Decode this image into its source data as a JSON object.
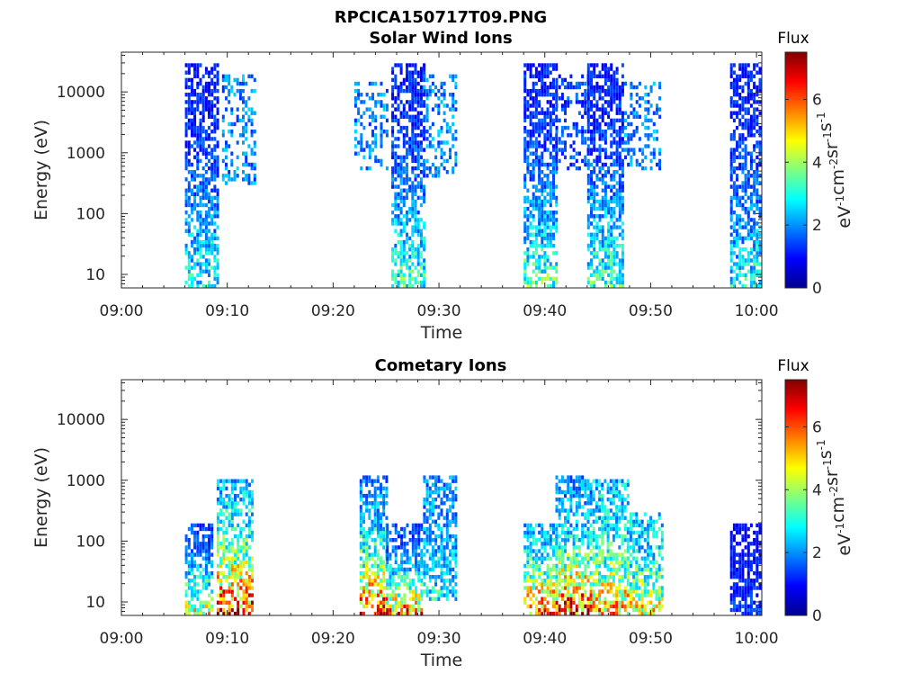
{
  "figure": {
    "title": "RPCICA150717T09.PNG"
  },
  "colorbar": {
    "title": "Flux",
    "label": "eV-1cm-2sr-1s-1",
    "ticks": [
      "0",
      "2",
      "4",
      "6"
    ],
    "range": [
      0,
      7.5
    ],
    "colormap": [
      "#00008f",
      "#0000ff",
      "#0080ff",
      "#00ffff",
      "#80ff80",
      "#ffff00",
      "#ff8000",
      "#ff0000",
      "#800000"
    ]
  },
  "chart_data": [
    {
      "type": "heatmap",
      "title": "Solar Wind Ions",
      "xlabel": "Time",
      "ylabel": "Energy (eV)",
      "x_ticks": [
        "09:00",
        "09:10",
        "09:20",
        "09:30",
        "09:40",
        "09:50",
        "10:00"
      ],
      "y_ticks": [
        "10",
        "100",
        "1000",
        "10000"
      ],
      "y_scale": "log",
      "xlim_minutes": [
        0,
        60.5
      ],
      "ylim": [
        6,
        45000
      ],
      "bursts": [
        {
          "t0": 6.0,
          "t1": 9.0,
          "emin": 6,
          "emax": 30000,
          "peak": 1.2,
          "low_peak": 3.0
        },
        {
          "t0": 9.5,
          "t1": 12.5,
          "emin": 300,
          "emax": 20000,
          "peak": 2.0,
          "low_peak": 2.0,
          "sparse": true
        },
        {
          "t0": 22.0,
          "t1": 25.0,
          "emin": 500,
          "emax": 15000,
          "peak": 2.0,
          "low_peak": 2.0,
          "sparse": true
        },
        {
          "t0": 25.5,
          "t1": 28.5,
          "emin": 6,
          "emax": 30000,
          "peak": 1.2,
          "low_peak": 3.4
        },
        {
          "t0": 28.5,
          "t1": 31.5,
          "emin": 400,
          "emax": 20000,
          "peak": 2.0,
          "low_peak": 2.0,
          "sparse": true
        },
        {
          "t0": 38.0,
          "t1": 41.0,
          "emin": 6,
          "emax": 30000,
          "peak": 1.2,
          "low_peak": 3.6
        },
        {
          "t0": 41.0,
          "t1": 44.0,
          "emin": 500,
          "emax": 20000,
          "peak": 1.5,
          "low_peak": 1.5,
          "sparse": true
        },
        {
          "t0": 44.0,
          "t1": 47.5,
          "emin": 6,
          "emax": 30000,
          "peak": 1.2,
          "low_peak": 3.4
        },
        {
          "t0": 47.5,
          "t1": 51.0,
          "emin": 500,
          "emax": 15000,
          "peak": 2.0,
          "low_peak": 2.0,
          "sparse": true
        },
        {
          "t0": 57.5,
          "t1": 60.5,
          "emin": 6,
          "emax": 30000,
          "peak": 1.2,
          "low_peak": 3.0
        }
      ]
    },
    {
      "type": "heatmap",
      "title": "Cometary Ions",
      "xlabel": "Time",
      "ylabel": "Energy (eV)",
      "x_ticks": [
        "09:00",
        "09:10",
        "09:20",
        "09:30",
        "09:40",
        "09:50",
        "10:00"
      ],
      "y_ticks": [
        "10",
        "100",
        "1000",
        "10000"
      ],
      "y_scale": "log",
      "xlim_minutes": [
        0,
        60.5
      ],
      "ylim": [
        6,
        45000
      ],
      "bursts": [
        {
          "t0": 6.0,
          "t1": 8.5,
          "emin": 6,
          "emax": 200,
          "peak": 1.5,
          "low_peak": 5.0
        },
        {
          "t0": 9.0,
          "t1": 12.5,
          "emin": 6,
          "emax": 1000,
          "peak": 2.5,
          "low_peak": 7.0
        },
        {
          "t0": 22.5,
          "t1": 25.0,
          "emin": 6,
          "emax": 1200,
          "peak": 2.0,
          "low_peak": 6.5
        },
        {
          "t0": 25.0,
          "t1": 28.5,
          "emin": 6,
          "emax": 200,
          "peak": 1.5,
          "low_peak": 6.0
        },
        {
          "t0": 28.5,
          "t1": 31.5,
          "emin": 10,
          "emax": 1200,
          "peak": 2.0,
          "low_peak": 3.0
        },
        {
          "t0": 38.0,
          "t1": 41.0,
          "emin": 6,
          "emax": 200,
          "peak": 2.5,
          "low_peak": 6.5
        },
        {
          "t0": 41.0,
          "t1": 44.5,
          "emin": 6,
          "emax": 1200,
          "peak": 2.0,
          "low_peak": 6.8
        },
        {
          "t0": 44.5,
          "t1": 48.0,
          "emin": 6,
          "emax": 1000,
          "peak": 2.5,
          "low_peak": 5.5
        },
        {
          "t0": 48.0,
          "t1": 51.0,
          "emin": 6,
          "emax": 300,
          "peak": 2.5,
          "low_peak": 5.0
        },
        {
          "t0": 57.5,
          "t1": 60.5,
          "emin": 6,
          "emax": 200,
          "peak": 1.0,
          "low_peak": 1.5
        }
      ]
    }
  ]
}
